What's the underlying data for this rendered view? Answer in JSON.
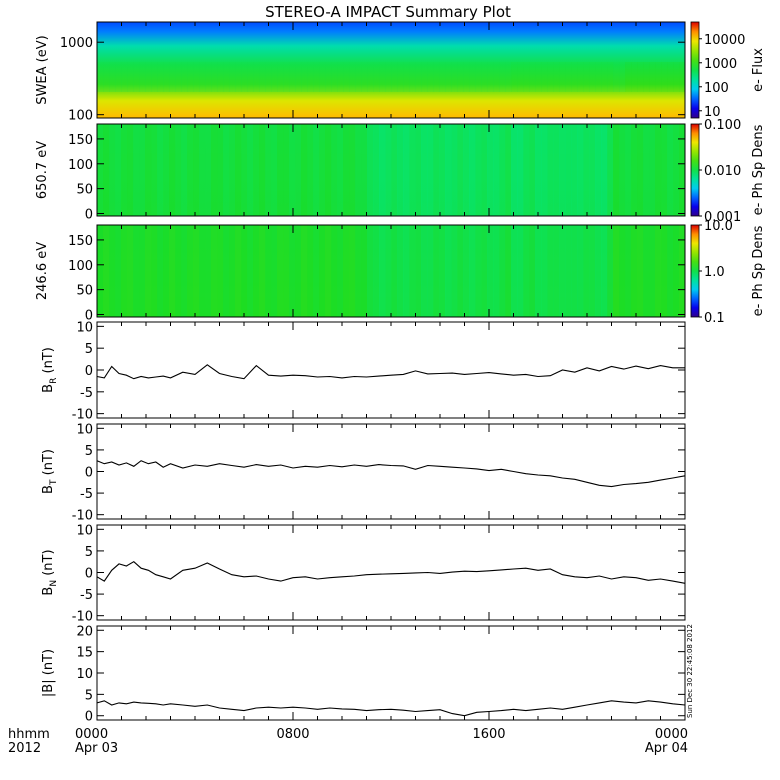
{
  "figure": {
    "title": "STEREO-A IMPACT Summary Plot",
    "timestamp": "Sun Dec 30 22:45:08 2012"
  },
  "time_axis": {
    "label_line1": "hhmm",
    "label_line2": "2012",
    "ticks": [
      {
        "hour": 0,
        "line1": "0000",
        "line2": "Apr 03"
      },
      {
        "hour": 8,
        "line1": "0800",
        "line2": ""
      },
      {
        "hour": 16,
        "line1": "1600",
        "line2": ""
      },
      {
        "hour": 24,
        "line1": "0000",
        "line2": "Apr 04"
      }
    ],
    "range_hours": [
      0,
      24
    ]
  },
  "chart_data": [
    {
      "type": "heatmap",
      "ylabel": "SWEA (eV)",
      "yscale": "log",
      "ylim": [
        90,
        1900
      ],
      "yticks": [
        "100",
        "1000"
      ],
      "colorbar_label": "e- Flux",
      "colorbar_ticks": [
        "10000",
        "1000",
        "100",
        "10"
      ],
      "colorbar_scale": "log",
      "colorbar_range": [
        5,
        50000
      ]
    },
    {
      "type": "heatmap",
      "ylabel": "650.7 eV",
      "ylim": [
        -5,
        180
      ],
      "yticks": [
        "150",
        "100",
        "50",
        "0"
      ],
      "colorbar_label": "e- Ph Sp Dens",
      "colorbar_ticks": [
        "0.100",
        "0.010",
        "0.001"
      ],
      "colorbar_scale": "log",
      "colorbar_range": [
        0.001,
        0.1
      ]
    },
    {
      "type": "heatmap",
      "ylabel": "246.6 eV",
      "ylim": [
        -5,
        180
      ],
      "yticks": [
        "150",
        "100",
        "50",
        "0"
      ],
      "colorbar_label": "e- Ph Sp Dens",
      "colorbar_ticks": [
        "10.0",
        "1.0",
        "0.1"
      ],
      "colorbar_scale": "log",
      "colorbar_range": [
        0.1,
        10
      ]
    },
    {
      "type": "line",
      "ylabel_main": "B",
      "ylabel_sub": "R",
      "ylabel_unit": " (nT)",
      "ylim": [
        -11,
        11
      ],
      "yticks": [
        "10",
        "5",
        "0",
        "-5",
        "-10"
      ],
      "x": [
        0,
        0.3,
        0.6,
        0.9,
        1.2,
        1.5,
        1.8,
        2.1,
        2.4,
        2.7,
        3.0,
        3.5,
        4.0,
        4.5,
        5.0,
        5.5,
        6.0,
        6.5,
        7.0,
        7.5,
        8.0,
        8.5,
        9.0,
        9.5,
        10.0,
        10.5,
        11.0,
        11.5,
        12.0,
        12.5,
        13.0,
        13.5,
        14.0,
        14.5,
        15.0,
        15.5,
        16.0,
        16.5,
        17.0,
        17.5,
        18.0,
        18.5,
        19.0,
        19.5,
        20.0,
        20.5,
        21.0,
        21.5,
        22.0,
        22.5,
        23.0,
        23.5,
        24.0
      ],
      "values": [
        -1.5,
        -1.8,
        0.8,
        -0.8,
        -1.2,
        -2.0,
        -1.5,
        -1.8,
        -1.6,
        -1.4,
        -1.8,
        -0.5,
        -1.0,
        1.2,
        -0.8,
        -1.5,
        -2.0,
        1.0,
        -1.2,
        -1.4,
        -1.2,
        -1.3,
        -1.6,
        -1.5,
        -1.8,
        -1.5,
        -1.6,
        -1.4,
        -1.2,
        -1.0,
        -0.2,
        -0.9,
        -0.8,
        -0.7,
        -1.0,
        -0.8,
        -0.6,
        -0.9,
        -1.2,
        -1.0,
        -1.5,
        -1.3,
        0.0,
        -0.5,
        0.5,
        -0.2,
        0.8,
        0.2,
        0.9,
        0.3,
        1.0,
        0.5,
        0.5
      ]
    },
    {
      "type": "line",
      "ylabel_main": "B",
      "ylabel_sub": "T",
      "ylabel_unit": " (nT)",
      "ylim": [
        -11,
        11
      ],
      "yticks": [
        "10",
        "5",
        "0",
        "-5",
        "-10"
      ],
      "x": [
        0,
        0.3,
        0.6,
        0.9,
        1.2,
        1.5,
        1.8,
        2.1,
        2.4,
        2.7,
        3.0,
        3.5,
        4.0,
        4.5,
        5.0,
        5.5,
        6.0,
        6.5,
        7.0,
        7.5,
        8.0,
        8.5,
        9.0,
        9.5,
        10.0,
        10.5,
        11.0,
        11.5,
        12.0,
        12.5,
        13.0,
        13.5,
        14.0,
        14.5,
        15.0,
        15.5,
        16.0,
        16.5,
        17.0,
        17.5,
        18.0,
        18.5,
        19.0,
        19.5,
        20.0,
        20.5,
        21.0,
        21.5,
        22.0,
        22.5,
        23.0,
        23.5,
        24.0
      ],
      "values": [
        2.5,
        1.8,
        2.2,
        1.5,
        2.0,
        1.2,
        2.5,
        1.8,
        2.2,
        1.0,
        1.8,
        0.8,
        1.5,
        1.2,
        1.8,
        1.4,
        1.0,
        1.6,
        1.2,
        1.5,
        0.8,
        1.2,
        1.0,
        1.4,
        1.1,
        1.5,
        1.2,
        1.6,
        1.4,
        1.3,
        0.5,
        1.4,
        1.2,
        1.0,
        0.8,
        0.6,
        0.2,
        0.5,
        0.0,
        -0.5,
        -0.8,
        -1.0,
        -1.5,
        -1.8,
        -2.5,
        -3.2,
        -3.5,
        -3.0,
        -2.8,
        -2.5,
        -2.0,
        -1.5,
        -1.0
      ]
    },
    {
      "type": "line",
      "ylabel_main": "B",
      "ylabel_sub": "N",
      "ylabel_unit": " (nT)",
      "ylim": [
        -11,
        11
      ],
      "yticks": [
        "10",
        "5",
        "0",
        "-5",
        "-10"
      ],
      "x": [
        0,
        0.3,
        0.6,
        0.9,
        1.2,
        1.5,
        1.8,
        2.1,
        2.4,
        2.7,
        3.0,
        3.5,
        4.0,
        4.5,
        5.0,
        5.5,
        6.0,
        6.5,
        7.0,
        7.5,
        8.0,
        8.5,
        9.0,
        9.5,
        10.0,
        10.5,
        11.0,
        11.5,
        12.0,
        12.5,
        13.0,
        13.5,
        14.0,
        14.5,
        15.0,
        15.5,
        16.0,
        16.5,
        17.0,
        17.5,
        18.0,
        18.5,
        19.0,
        19.5,
        20.0,
        20.5,
        21.0,
        21.5,
        22.0,
        22.5,
        23.0,
        23.5,
        24.0
      ],
      "values": [
        -1.0,
        -2.0,
        0.5,
        2.0,
        1.5,
        2.5,
        1.0,
        0.5,
        -0.5,
        -1.0,
        -1.5,
        0.5,
        1.0,
        2.2,
        0.8,
        -0.5,
        -1.0,
        -0.8,
        -1.5,
        -2.0,
        -1.2,
        -1.0,
        -1.5,
        -1.2,
        -1.0,
        -0.8,
        -0.5,
        -0.4,
        -0.3,
        -0.2,
        -0.1,
        0.0,
        -0.2,
        0.1,
        0.3,
        0.2,
        0.4,
        0.6,
        0.8,
        1.0,
        0.5,
        0.8,
        -0.5,
        -1.0,
        -1.2,
        -0.8,
        -1.5,
        -1.0,
        -1.2,
        -1.8,
        -1.5,
        -2.0,
        -2.5
      ]
    },
    {
      "type": "line",
      "ylabel_main": "|B|",
      "ylabel_sub": "",
      "ylabel_unit": " (nT)",
      "ylim": [
        -1,
        21
      ],
      "yticks": [
        "20",
        "15",
        "10",
        "5",
        "0"
      ],
      "x": [
        0,
        0.3,
        0.6,
        0.9,
        1.2,
        1.5,
        1.8,
        2.1,
        2.4,
        2.7,
        3.0,
        3.5,
        4.0,
        4.5,
        5.0,
        5.5,
        6.0,
        6.5,
        7.0,
        7.5,
        8.0,
        8.5,
        9.0,
        9.5,
        10.0,
        10.5,
        11.0,
        11.5,
        12.0,
        12.5,
        13.0,
        13.5,
        14.0,
        14.5,
        15.0,
        15.5,
        16.0,
        16.5,
        17.0,
        17.5,
        18.0,
        18.5,
        19.0,
        19.5,
        20.0,
        20.5,
        21.0,
        21.5,
        22.0,
        22.5,
        23.0,
        23.5,
        24.0
      ],
      "values": [
        3.0,
        3.5,
        2.5,
        3.0,
        2.8,
        3.2,
        3.0,
        2.9,
        2.8,
        2.5,
        2.8,
        2.5,
        2.2,
        2.5,
        1.8,
        1.5,
        1.2,
        1.8,
        2.0,
        1.8,
        2.0,
        1.8,
        1.5,
        1.8,
        1.6,
        1.5,
        1.2,
        1.4,
        1.5,
        1.3,
        1.0,
        1.2,
        1.4,
        0.5,
        0.0,
        0.8,
        1.0,
        1.2,
        1.5,
        1.2,
        1.5,
        1.8,
        1.5,
        2.0,
        2.5,
        3.0,
        3.5,
        3.2,
        3.0,
        3.5,
        3.2,
        2.8,
        2.5
      ]
    }
  ]
}
